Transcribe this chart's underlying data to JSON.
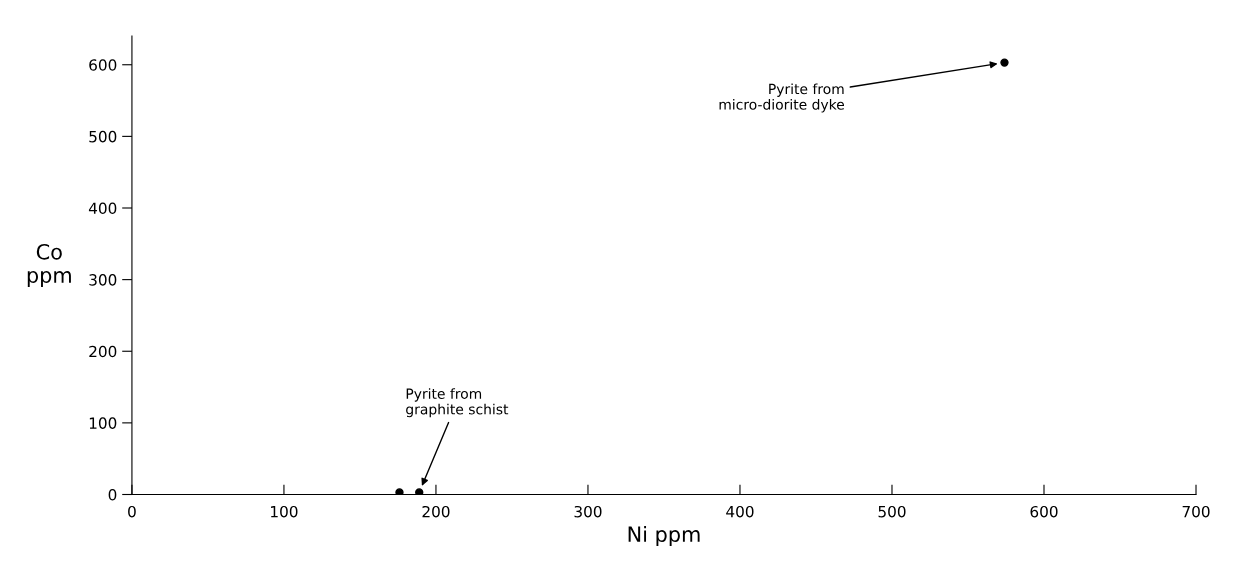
{
  "chart_data": {
    "type": "scatter",
    "xlabel": "Ni ppm",
    "ylabel": "Co\nppm",
    "xlim": [
      0,
      700
    ],
    "ylim": [
      0,
      640
    ],
    "xticks": [
      0,
      100,
      200,
      300,
      400,
      500,
      600,
      700
    ],
    "yticks": [
      0,
      100,
      200,
      300,
      400,
      500,
      600
    ],
    "x": [
      176,
      189,
      574
    ],
    "series": [
      {
        "color": "#000000",
        "values": [
          3,
          3,
          603
        ]
      }
    ],
    "marker": "circle",
    "grid": false,
    "annotations": [
      {
        "text": "Pyrite from\ngraphite schist",
        "x": 189,
        "y": 3
      },
      {
        "text": "Pyrite from\nmicro-diorite dyke",
        "x": 574,
        "y": 603
      }
    ]
  }
}
